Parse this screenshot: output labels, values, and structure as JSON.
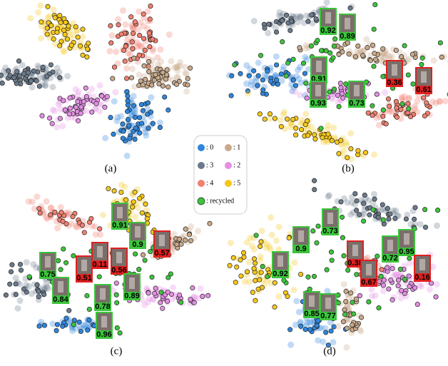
{
  "legend": [
    {
      "label": ": 0",
      "color": "#2e86de"
    },
    {
      "label": ": 1",
      "color": "#c9a98a"
    },
    {
      "label": ": 3",
      "color": "#6b7b8c"
    },
    {
      "label": ": 2",
      "color": "#e38ee3"
    },
    {
      "label": ": 4",
      "color": "#f27f6f"
    },
    {
      "label": ": 5",
      "color": "#f5c71a"
    },
    {
      "label": ": recycled",
      "color": "#3cc43c"
    }
  ],
  "panels": [
    {
      "label": "(a)",
      "thumbnails": []
    },
    {
      "label": "(b)",
      "thumbnails": [
        {
          "score": "0.92",
          "border": "#3cc43c"
        },
        {
          "score": "0.89",
          "border": "#3cc43c"
        },
        {
          "score": "0.91",
          "border": "#3cc43c"
        },
        {
          "score": "0.36",
          "border": "#e02020"
        },
        {
          "score": "0.61",
          "border": "#e02020"
        },
        {
          "score": "0.93",
          "border": "#3cc43c"
        },
        {
          "score": "0.73",
          "border": "#3cc43c"
        }
      ]
    },
    {
      "label": "(c)",
      "thumbnails": [
        {
          "score": "0.91",
          "border": "#3cc43c"
        },
        {
          "score": "0.9",
          "border": "#3cc43c"
        },
        {
          "score": "0.57",
          "border": "#e02020"
        },
        {
          "score": "0.75",
          "border": "#3cc43c"
        },
        {
          "score": "0.51",
          "border": "#e02020"
        },
        {
          "score": "0.11",
          "border": "#e02020"
        },
        {
          "score": "0.56",
          "border": "#e02020"
        },
        {
          "score": "0.84",
          "border": "#3cc43c"
        },
        {
          "score": "0.89",
          "border": "#3cc43c"
        },
        {
          "score": "0.78",
          "border": "#3cc43c"
        },
        {
          "score": "0.96",
          "border": "#3cc43c"
        }
      ]
    },
    {
      "label": "(d)",
      "thumbnails": [
        {
          "score": "0.73",
          "border": "#3cc43c"
        },
        {
          "score": "0.9",
          "border": "#3cc43c"
        },
        {
          "score": "0.92",
          "border": "#3cc43c"
        },
        {
          "score": "0.38",
          "border": "#e02020"
        },
        {
          "score": "0.67",
          "border": "#e02020"
        },
        {
          "score": "0.72",
          "border": "#3cc43c"
        },
        {
          "score": "0.95",
          "border": "#3cc43c"
        },
        {
          "score": "0.16",
          "border": "#e02020"
        },
        {
          "score": "0.77",
          "border": "#3cc43c"
        },
        {
          "score": "0.85",
          "border": "#3cc43c"
        }
      ]
    }
  ]
}
